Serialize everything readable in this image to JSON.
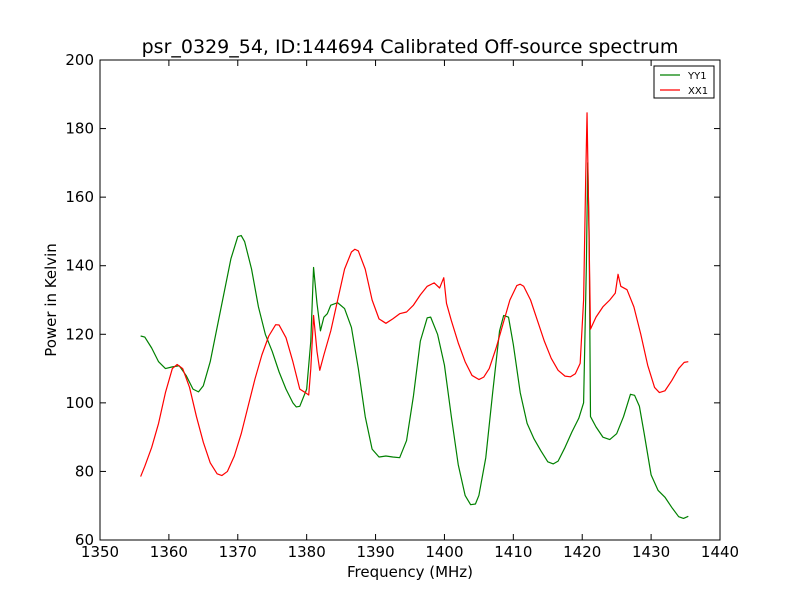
{
  "chart_data": {
    "type": "line",
    "title": "psr_0329_54, ID:144694 Calibrated Off-source spectrum",
    "xlabel": "Frequency (MHz)",
    "ylabel": "Power in Kelvin",
    "xlim": [
      1350,
      1440
    ],
    "ylim": [
      60,
      200
    ],
    "xticks": [
      "1350",
      "1360",
      "1370",
      "1380",
      "1390",
      "1400",
      "1410",
      "1420",
      "1430",
      "1440"
    ],
    "yticks": [
      "60",
      "80",
      "100",
      "120",
      "140",
      "160",
      "180",
      "200"
    ],
    "grid": false,
    "legend_position": "top-right",
    "series": [
      {
        "name": "YY1",
        "color": "#008000",
        "points": [
          [
            1355.9,
            119.5
          ],
          [
            1356.5,
            119.2
          ],
          [
            1357.5,
            116.0
          ],
          [
            1358.5,
            112.0
          ],
          [
            1359.5,
            110.0
          ],
          [
            1360.5,
            110.5
          ],
          [
            1361.5,
            110.8
          ],
          [
            1362.5,
            108.0
          ],
          [
            1363.5,
            104.0
          ],
          [
            1364.3,
            103.2
          ],
          [
            1365.0,
            105.0
          ],
          [
            1366.0,
            112.0
          ],
          [
            1367.0,
            122.0
          ],
          [
            1368.0,
            132.0
          ],
          [
            1369.0,
            142.0
          ],
          [
            1370.0,
            148.5
          ],
          [
            1370.5,
            148.8
          ],
          [
            1371.0,
            147.0
          ],
          [
            1372.0,
            139.0
          ],
          [
            1373.0,
            128.0
          ],
          [
            1374.0,
            120.0
          ],
          [
            1375.0,
            115.0
          ],
          [
            1376.0,
            109.0
          ],
          [
            1377.0,
            104.0
          ],
          [
            1378.0,
            100.0
          ],
          [
            1378.5,
            98.8
          ],
          [
            1379.0,
            99.0
          ],
          [
            1380.0,
            104.0
          ],
          [
            1380.6,
            118.0
          ],
          [
            1381.0,
            139.5
          ],
          [
            1381.5,
            129.0
          ],
          [
            1382.0,
            121.0
          ],
          [
            1382.5,
            125.0
          ],
          [
            1383.0,
            126.0
          ],
          [
            1383.5,
            128.5
          ],
          [
            1384.5,
            129.2
          ],
          [
            1385.5,
            127.5
          ],
          [
            1386.5,
            122.0
          ],
          [
            1387.5,
            110.0
          ],
          [
            1388.5,
            96.0
          ],
          [
            1389.5,
            86.5
          ],
          [
            1390.5,
            84.2
          ],
          [
            1391.5,
            84.5
          ],
          [
            1392.5,
            84.2
          ],
          [
            1393.5,
            84.0
          ],
          [
            1394.5,
            89.0
          ],
          [
            1395.5,
            102.0
          ],
          [
            1396.5,
            118.0
          ],
          [
            1397.5,
            124.8
          ],
          [
            1398.0,
            125.0
          ],
          [
            1399.0,
            120.0
          ],
          [
            1400.0,
            111.0
          ],
          [
            1401.0,
            96.0
          ],
          [
            1402.0,
            82.0
          ],
          [
            1403.0,
            73.0
          ],
          [
            1403.8,
            70.3
          ],
          [
            1404.5,
            70.5
          ],
          [
            1405.0,
            73.0
          ],
          [
            1406.0,
            84.0
          ],
          [
            1407.0,
            103.0
          ],
          [
            1408.0,
            121.0
          ],
          [
            1408.6,
            125.5
          ],
          [
            1409.3,
            125.0
          ],
          [
            1410.0,
            117.0
          ],
          [
            1411.0,
            103.0
          ],
          [
            1412.0,
            94.0
          ],
          [
            1413.0,
            89.5
          ],
          [
            1414.0,
            86.0
          ],
          [
            1415.0,
            82.8
          ],
          [
            1415.8,
            82.2
          ],
          [
            1416.5,
            83.0
          ],
          [
            1417.5,
            87.0
          ],
          [
            1418.5,
            91.5
          ],
          [
            1419.5,
            95.5
          ],
          [
            1420.2,
            100.0
          ],
          [
            1420.6,
            140.0
          ],
          [
            1420.8,
            170.0
          ],
          [
            1421.0,
            150.0
          ],
          [
            1421.2,
            96.0
          ],
          [
            1422.0,
            93.0
          ],
          [
            1423.0,
            90.0
          ],
          [
            1424.0,
            89.3
          ],
          [
            1425.0,
            91.0
          ],
          [
            1426.0,
            96.0
          ],
          [
            1427.0,
            102.5
          ],
          [
            1427.6,
            102.2
          ],
          [
            1428.3,
            99.0
          ],
          [
            1429.0,
            91.0
          ],
          [
            1430.0,
            79.0
          ],
          [
            1431.0,
            74.5
          ],
          [
            1432.0,
            72.5
          ],
          [
            1433.0,
            69.5
          ],
          [
            1434.0,
            66.8
          ],
          [
            1434.7,
            66.3
          ],
          [
            1435.4,
            66.9
          ]
        ]
      },
      {
        "name": "XX1",
        "color": "#ff0000",
        "points": [
          [
            1355.9,
            78.5
          ],
          [
            1356.5,
            81.5
          ],
          [
            1357.5,
            87.0
          ],
          [
            1358.5,
            94.0
          ],
          [
            1359.5,
            103.0
          ],
          [
            1360.5,
            110.0
          ],
          [
            1361.2,
            111.2
          ],
          [
            1362.0,
            110.0
          ],
          [
            1363.0,
            104.5
          ],
          [
            1364.0,
            96.0
          ],
          [
            1365.0,
            88.5
          ],
          [
            1366.0,
            82.5
          ],
          [
            1367.0,
            79.3
          ],
          [
            1367.7,
            78.8
          ],
          [
            1368.5,
            80.0
          ],
          [
            1369.5,
            84.5
          ],
          [
            1370.5,
            91.0
          ],
          [
            1371.5,
            99.0
          ],
          [
            1372.5,
            107.0
          ],
          [
            1373.5,
            114.0
          ],
          [
            1374.5,
            119.5
          ],
          [
            1375.5,
            122.8
          ],
          [
            1376.0,
            122.7
          ],
          [
            1377.0,
            119.0
          ],
          [
            1378.0,
            112.0
          ],
          [
            1379.0,
            104.0
          ],
          [
            1379.8,
            103.0
          ],
          [
            1380.3,
            102.3
          ],
          [
            1380.6,
            110.0
          ],
          [
            1381.0,
            125.5
          ],
          [
            1381.5,
            115.0
          ],
          [
            1381.9,
            109.5
          ],
          [
            1382.5,
            114.0
          ],
          [
            1383.5,
            121.0
          ],
          [
            1384.5,
            130.0
          ],
          [
            1385.5,
            139.0
          ],
          [
            1386.5,
            144.0
          ],
          [
            1387.0,
            144.8
          ],
          [
            1387.5,
            144.3
          ],
          [
            1388.5,
            139.0
          ],
          [
            1389.5,
            130.0
          ],
          [
            1390.5,
            124.5
          ],
          [
            1391.5,
            123.2
          ],
          [
            1392.5,
            124.5
          ],
          [
            1393.5,
            126.0
          ],
          [
            1394.5,
            126.5
          ],
          [
            1395.5,
            128.5
          ],
          [
            1396.5,
            131.5
          ],
          [
            1397.5,
            134.0
          ],
          [
            1398.5,
            135.0
          ],
          [
            1399.3,
            133.5
          ],
          [
            1399.9,
            136.5
          ],
          [
            1400.3,
            129.0
          ],
          [
            1401.0,
            124.0
          ],
          [
            1402.0,
            117.5
          ],
          [
            1403.0,
            112.0
          ],
          [
            1404.0,
            108.0
          ],
          [
            1405.0,
            106.8
          ],
          [
            1405.7,
            107.5
          ],
          [
            1406.5,
            110.0
          ],
          [
            1407.5,
            116.0
          ],
          [
            1408.5,
            123.0
          ],
          [
            1409.5,
            130.0
          ],
          [
            1410.5,
            134.2
          ],
          [
            1411.0,
            134.6
          ],
          [
            1411.5,
            134.0
          ],
          [
            1412.5,
            130.0
          ],
          [
            1413.5,
            124.0
          ],
          [
            1414.5,
            118.0
          ],
          [
            1415.5,
            113.0
          ],
          [
            1416.5,
            109.5
          ],
          [
            1417.5,
            107.8
          ],
          [
            1418.3,
            107.6
          ],
          [
            1419.0,
            108.5
          ],
          [
            1419.7,
            111.5
          ],
          [
            1420.2,
            130.0
          ],
          [
            1420.5,
            165.0
          ],
          [
            1420.7,
            184.6
          ],
          [
            1420.9,
            160.0
          ],
          [
            1421.2,
            121.5
          ],
          [
            1422.0,
            125.0
          ],
          [
            1423.0,
            128.0
          ],
          [
            1424.0,
            130.0
          ],
          [
            1424.8,
            132.0
          ],
          [
            1425.2,
            137.5
          ],
          [
            1425.6,
            134.0
          ],
          [
            1426.5,
            133.0
          ],
          [
            1427.5,
            128.0
          ],
          [
            1428.5,
            120.0
          ],
          [
            1429.5,
            111.0
          ],
          [
            1430.5,
            104.5
          ],
          [
            1431.2,
            103.0
          ],
          [
            1432.0,
            103.5
          ],
          [
            1433.0,
            106.5
          ],
          [
            1434.0,
            110.0
          ],
          [
            1434.8,
            111.8
          ],
          [
            1435.4,
            112.0
          ]
        ]
      }
    ]
  }
}
